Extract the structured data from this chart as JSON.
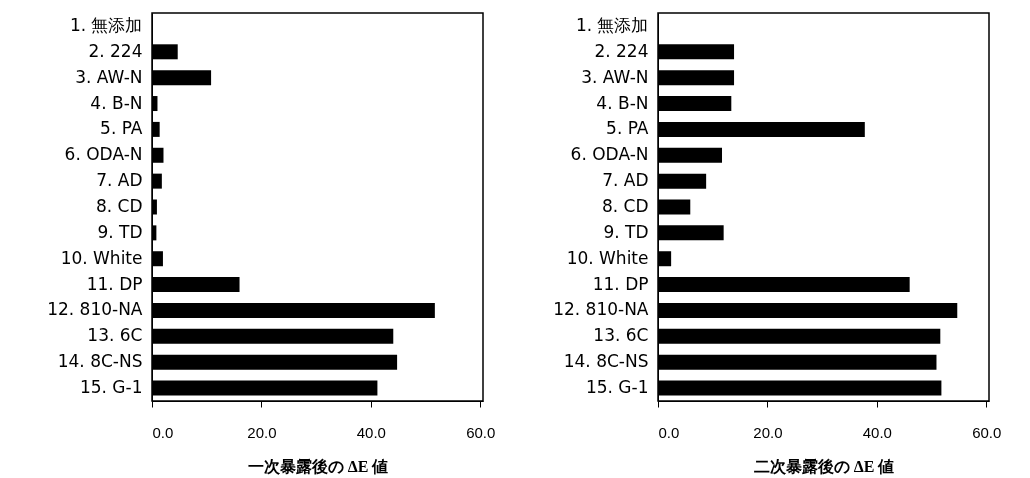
{
  "chart_data": [
    {
      "type": "bar",
      "orientation": "horizontal",
      "xlabel": "一次暴露後の ΔE 値",
      "color": "#000000",
      "grid": false,
      "categories": [
        "1. 無添加",
        "2. 224",
        "3. AW-N",
        "4. B-N",
        "5. PA",
        "6. ODA-N",
        "7. AD",
        "8. CD",
        "9. TD",
        "10. White",
        "11. DP",
        "12. 810-NA",
        "13. 6C",
        "14. 8C-NS",
        "15. G-1"
      ],
      "values": [
        0,
        4.7,
        10.8,
        1.0,
        1.4,
        2.1,
        1.8,
        0.9,
        0.8,
        2.0,
        16.0,
        51.7,
        44.1,
        44.8,
        41.2
      ],
      "xlim": [
        0,
        60.5
      ],
      "xticks": [
        {
          "value": 0,
          "label": "0.0"
        },
        {
          "value": 20,
          "label": "20.0"
        },
        {
          "value": 40,
          "label": "40.0"
        },
        {
          "value": 60,
          "label": "60.0"
        }
      ]
    },
    {
      "type": "bar",
      "orientation": "horizontal",
      "xlabel": "二次暴露後の ΔE 値",
      "color": "#000000",
      "grid": false,
      "categories": [
        "1. 無添加",
        "2. 224",
        "3. AW-N",
        "4. B-N",
        "5. PA",
        "6. ODA-N",
        "7. AD",
        "8. CD",
        "9. TD",
        "10. White",
        "11. DP",
        "12. 810-NA",
        "13. 6C",
        "14. 8C-NS",
        "15. G-1"
      ],
      "values": [
        0,
        13.9,
        13.9,
        13.4,
        37.8,
        11.7,
        8.8,
        5.9,
        12.0,
        2.4,
        46.0,
        54.7,
        51.6,
        50.9,
        51.8
      ],
      "xlim": [
        0,
        60.5
      ],
      "xticks": [
        {
          "value": 0,
          "label": "0.0"
        },
        {
          "value": 20,
          "label": "20.0"
        },
        {
          "value": 40,
          "label": "40.0"
        },
        {
          "value": 60,
          "label": "60.0"
        }
      ]
    }
  ]
}
